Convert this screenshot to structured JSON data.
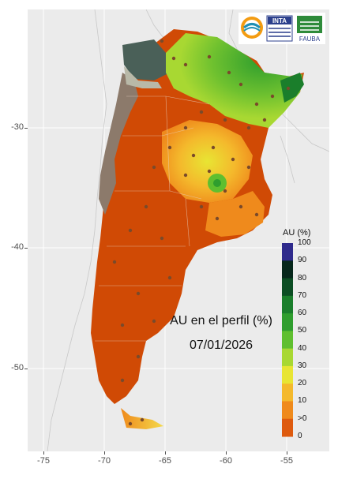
{
  "map": {
    "annotation_title": "AU en el perfil (%)",
    "annotation_date": "07/01/2026",
    "y_ticks": [
      "-30",
      "-40",
      "-50"
    ],
    "x_ticks": [
      "-75",
      "-70",
      "-65",
      "-60",
      "-55"
    ],
    "colors": {
      "background": "#ebebeb",
      "land_orange": "#d04a05",
      "andes_brown": "#8c7a6b",
      "grey_dark": "#4a6058"
    }
  },
  "legend": {
    "title": "AU (%)",
    "labels": [
      "100",
      "90",
      "80",
      "70",
      "60",
      "50",
      "40",
      "30",
      "20",
      "10",
      ">0",
      "0"
    ],
    "colors": [
      "#2e2a8c",
      "#06271b",
      "#0b4d23",
      "#1a7e2b",
      "#2f9e2e",
      "#5fbf2f",
      "#a8d832",
      "#e8e533",
      "#f4b92c",
      "#ef8a1c",
      "#de5a0e",
      "#c2410a"
    ]
  },
  "logos": {
    "logo_1_text": "INTA",
    "logo_2_text": "FAUBA"
  }
}
